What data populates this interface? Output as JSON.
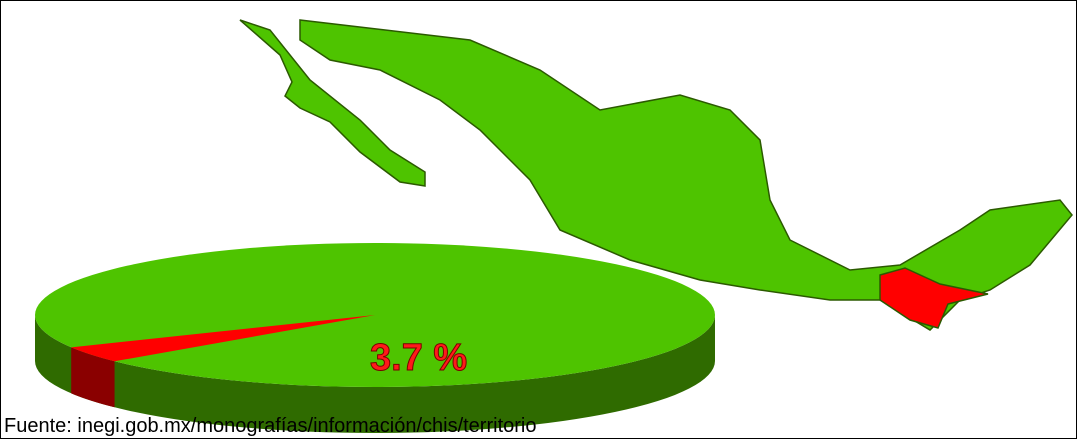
{
  "chart_data": {
    "type": "pie",
    "values": [
      3.7
    ],
    "value_labels": [
      "3.7 %"
    ],
    "color": "#ff0000",
    "caption": "Fuente: inegi.gob.mx/monografías/información/chis/territorio"
  }
}
